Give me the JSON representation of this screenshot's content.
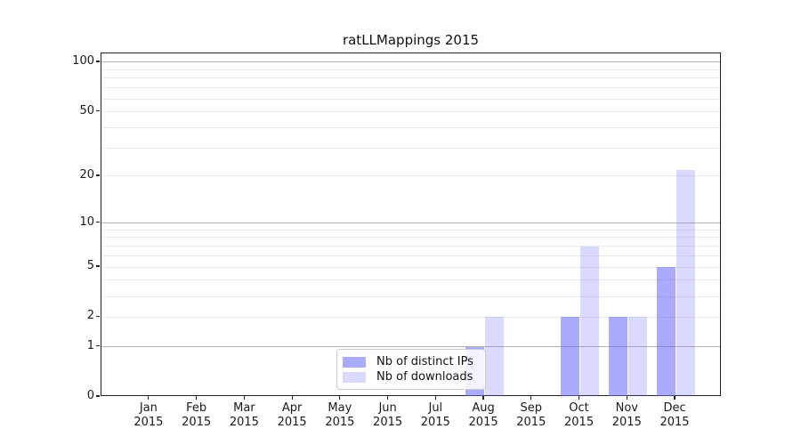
{
  "title": "ratLLMappings 2015",
  "chart_data": {
    "type": "bar",
    "title": "ratLLMappings 2015",
    "months": [
      "Jan",
      "Feb",
      "Mar",
      "Apr",
      "May",
      "Jun",
      "Jul",
      "Aug",
      "Sep",
      "Oct",
      "Nov",
      "Dec"
    ],
    "year": "2015",
    "series": [
      {
        "name": "Nb of distinct IPs",
        "color": "#6666fa",
        "alpha": 0.55,
        "values": [
          0,
          0,
          0,
          0,
          0,
          0,
          0,
          1,
          0,
          2,
          2,
          5
        ]
      },
      {
        "name": "Nb of downloads",
        "color": "#6666fa",
        "alpha": 0.24,
        "values": [
          0,
          0,
          0,
          0,
          0,
          0,
          0,
          2,
          0,
          7,
          2,
          22
        ]
      }
    ],
    "yscale": "log1p",
    "ylim": [
      0,
      113
    ],
    "yticks": [
      0,
      1,
      2,
      5,
      10,
      20,
      50,
      100
    ],
    "major_gridlines": [
      1,
      10,
      100
    ],
    "minor_gridlines": [
      2,
      3,
      4,
      5,
      6,
      7,
      8,
      9,
      20,
      30,
      40,
      50,
      60,
      70,
      80,
      90
    ],
    "xlabel": "",
    "ylabel": "",
    "grid": "on",
    "legend_position": "lower-center-inside"
  }
}
